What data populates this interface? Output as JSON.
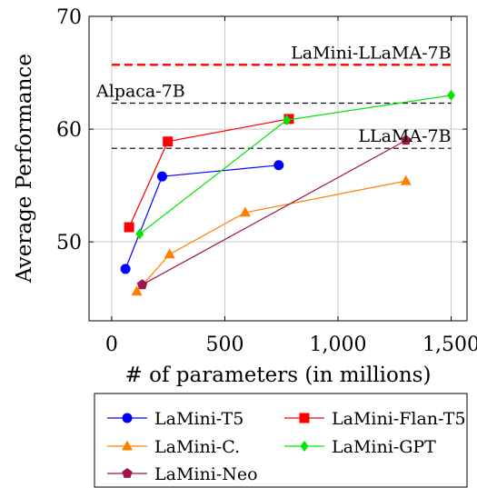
{
  "chart_data": {
    "type": "line",
    "xlabel": "# of parameters (in millions)",
    "ylabel": "Average Performance",
    "xlim": [
      -100,
      1570
    ],
    "ylim": [
      43,
      70
    ],
    "xticks": [
      0,
      500,
      1000,
      1500
    ],
    "xtick_labels": [
      "0",
      "500",
      "1,000",
      "1,500"
    ],
    "yticks": [
      50,
      60,
      70
    ],
    "ytick_labels": [
      "50",
      "60",
      "70"
    ],
    "grid": true,
    "legend_position": "bottom-outside",
    "series": [
      {
        "name": "LaMini-T5",
        "color": "#0000ff",
        "marker": "circle",
        "x": [
          61,
          223,
          738
        ],
        "y": [
          47.6,
          55.8,
          56.8
        ]
      },
      {
        "name": "LaMini-Flan-T5",
        "color": "#ff0000",
        "marker": "square",
        "x": [
          77,
          248,
          783
        ],
        "y": [
          51.3,
          58.9,
          60.9
        ]
      },
      {
        "name": "LaMini-C.",
        "color": "#ff8000",
        "marker": "triangle",
        "x": [
          111,
          256,
          590,
          1300
        ],
        "y": [
          45.6,
          48.9,
          52.6,
          55.4
        ]
      },
      {
        "name": "LaMini-GPT",
        "color": "#00e600",
        "marker": "diamond",
        "x": [
          124,
          774,
          1500
        ],
        "y": [
          50.7,
          60.8,
          63.0
        ]
      },
      {
        "name": "LaMini-Neo",
        "color": "#a0144c",
        "marker": "pentagon",
        "x": [
          135,
          1300
        ],
        "y": [
          46.2,
          59.0
        ]
      }
    ],
    "reference_lines": [
      {
        "label": "LaMini-LLaMA-7B",
        "y": 65.7,
        "color": "#ff0000",
        "style": "dashed-thick"
      },
      {
        "label": "Alpaca-7B",
        "y": 62.3,
        "color": "#000000",
        "style": "dashed"
      },
      {
        "label": "LLaMA-7B",
        "y": 58.3,
        "color": "#000000",
        "style": "dashed"
      }
    ]
  }
}
